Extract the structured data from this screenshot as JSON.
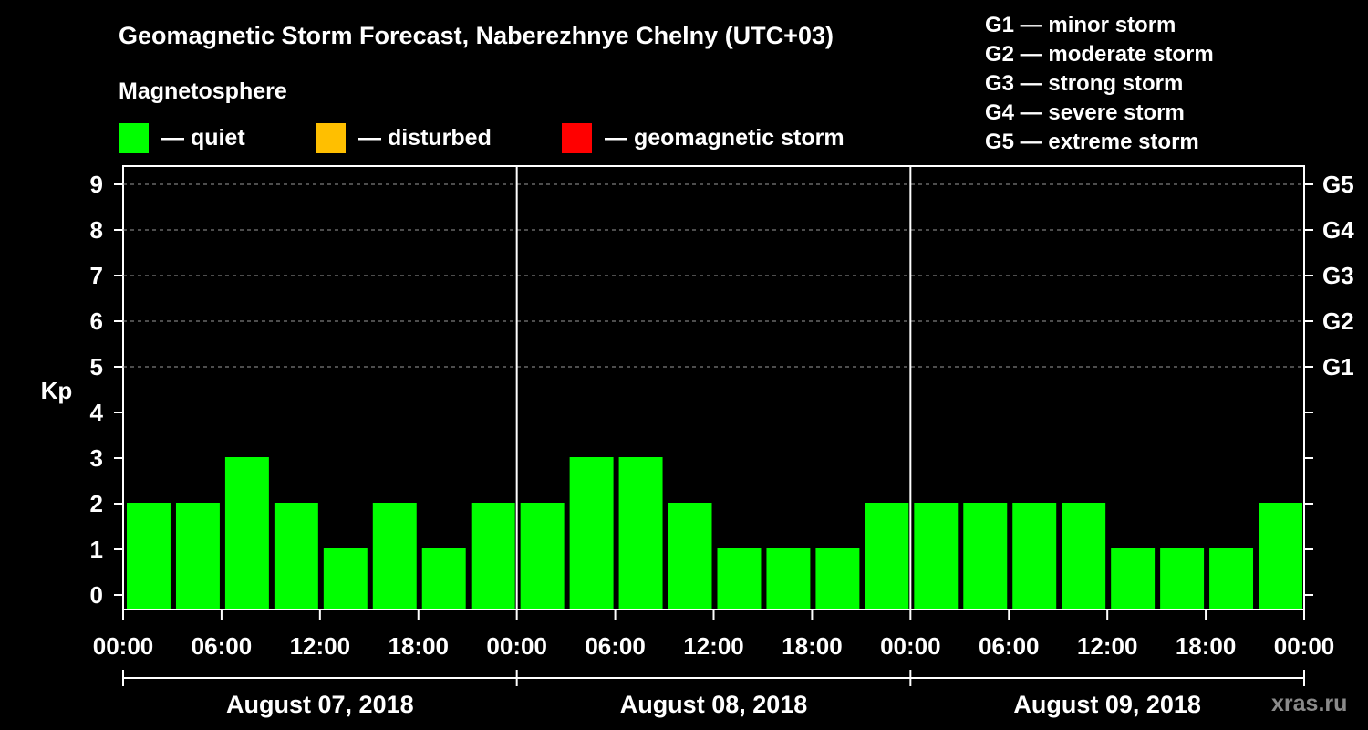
{
  "title": "Geomagnetic Storm Forecast, Naberezhnye Chelny (UTC+03)",
  "legend": {
    "heading": "Magnetosphere",
    "items": [
      {
        "label": "— quiet",
        "color": "#00ff00"
      },
      {
        "label": "— disturbed",
        "color": "#ffbf00"
      },
      {
        "label": "— geomagnetic storm",
        "color": "#ff0000"
      }
    ]
  },
  "storm_levels": [
    "G1 — minor storm",
    "G2 — moderate storm",
    "G3 — strong storm",
    "G4 — severe storm",
    "G5 — extreme storm"
  ],
  "watermark": "xras.ru",
  "chart_data": {
    "type": "bar",
    "ylabel": "Kp",
    "ylim": [
      0,
      9
    ],
    "yticks": [
      "0",
      "1",
      "2",
      "3",
      "4",
      "5",
      "6",
      "7",
      "8",
      "9"
    ],
    "right_ticks": [
      {
        "kp": 5,
        "label": "G1"
      },
      {
        "kp": 6,
        "label": "G2"
      },
      {
        "kp": 7,
        "label": "G3"
      },
      {
        "kp": 8,
        "label": "G4"
      },
      {
        "kp": 9,
        "label": "G5"
      }
    ],
    "gridlines": "dashed at Kp 5-9",
    "x_time_labels": [
      "00:00",
      "06:00",
      "12:00",
      "18:00",
      "00:00",
      "06:00",
      "12:00",
      "18:00",
      "00:00",
      "06:00",
      "12:00",
      "18:00",
      "00:00"
    ],
    "days": [
      {
        "date": "August 07, 2018",
        "values": [
          2,
          2,
          3,
          2,
          1,
          2,
          1,
          2
        ]
      },
      {
        "date": "August 08, 2018",
        "values": [
          2,
          3,
          3,
          2,
          1,
          1,
          1,
          2
        ]
      },
      {
        "date": "August 09, 2018",
        "values": [
          2,
          2,
          2,
          2,
          1,
          1,
          1,
          2
        ]
      }
    ],
    "bar_color": "#00ff00"
  }
}
